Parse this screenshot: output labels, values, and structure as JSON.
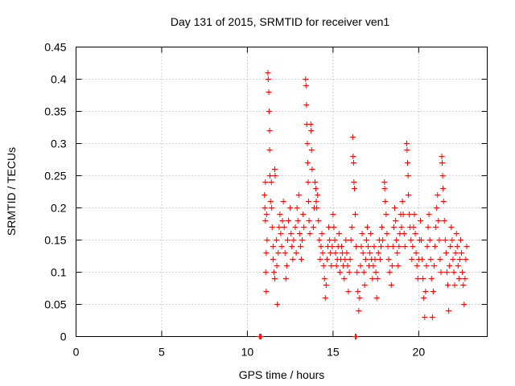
{
  "chart_data": {
    "type": "scatter",
    "title": "Day 131 of 2015, SRMTID for receiver ven1",
    "xlabel": "GPS time / hours",
    "ylabel": "SRMTID / TECUs",
    "xlim": [
      0,
      24
    ],
    "ylim": [
      0,
      0.45
    ],
    "xticks": [
      0,
      5,
      10,
      15,
      20
    ],
    "yticks": [
      0,
      0.05,
      0.1,
      0.15,
      0.2,
      0.25,
      0.3,
      0.35,
      0.4,
      0.45
    ],
    "xtick_labels": [
      "0",
      "5",
      "10",
      "15",
      "20"
    ],
    "ytick_labels": [
      "0",
      "0.05",
      "0.1",
      "0.15",
      "0.2",
      "0.25",
      "0.3",
      "0.35",
      "0.4",
      "0.45"
    ],
    "grid": true,
    "marker": "+",
    "color": "#ff0000",
    "series": [
      {
        "name": "SRMTID",
        "x_range": [
          10.7,
          22.8
        ],
        "y_range": [
          0.0,
          0.41
        ],
        "points": [
          [
            10.7,
            0.0
          ],
          [
            10.75,
            0.0
          ],
          [
            10.8,
            0.0
          ],
          [
            16.3,
            0.0
          ],
          [
            16.35,
            0.0
          ],
          [
            11.0,
            0.22
          ],
          [
            11.02,
            0.2
          ],
          [
            11.05,
            0.18
          ],
          [
            11.05,
            0.24
          ],
          [
            11.07,
            0.1
          ],
          [
            11.1,
            0.13
          ],
          [
            11.1,
            0.07
          ],
          [
            11.12,
            0.19
          ],
          [
            11.15,
            0.15
          ],
          [
            11.2,
            0.41
          ],
          [
            11.22,
            0.4
          ],
          [
            11.25,
            0.38
          ],
          [
            11.27,
            0.35
          ],
          [
            11.3,
            0.32
          ],
          [
            11.3,
            0.29
          ],
          [
            11.32,
            0.25
          ],
          [
            11.35,
            0.21
          ],
          [
            11.4,
            0.24
          ],
          [
            11.42,
            0.2
          ],
          [
            11.45,
            0.17
          ],
          [
            11.5,
            0.14
          ],
          [
            11.5,
            0.12
          ],
          [
            11.55,
            0.1
          ],
          [
            11.6,
            0.09
          ],
          [
            11.6,
            0.26
          ],
          [
            11.62,
            0.25
          ],
          [
            11.7,
            0.15
          ],
          [
            11.72,
            0.11
          ],
          [
            11.75,
            0.05
          ],
          [
            11.8,
            0.13
          ],
          [
            11.85,
            0.17
          ],
          [
            11.9,
            0.19
          ],
          [
            11.95,
            0.16
          ],
          [
            12.0,
            0.14
          ],
          [
            12.05,
            0.18
          ],
          [
            12.1,
            0.21
          ],
          [
            12.15,
            0.17
          ],
          [
            12.2,
            0.13
          ],
          [
            12.25,
            0.09
          ],
          [
            12.3,
            0.11
          ],
          [
            12.35,
            0.15
          ],
          [
            12.4,
            0.18
          ],
          [
            12.5,
            0.2
          ],
          [
            12.55,
            0.16
          ],
          [
            12.6,
            0.14
          ],
          [
            12.65,
            0.12
          ],
          [
            12.7,
            0.15
          ],
          [
            12.8,
            0.17
          ],
          [
            12.85,
            0.13
          ],
          [
            12.9,
            0.2
          ],
          [
            12.95,
            0.18
          ],
          [
            13.0,
            0.22
          ],
          [
            13.05,
            0.16
          ],
          [
            13.1,
            0.14
          ],
          [
            13.15,
            0.12
          ],
          [
            13.2,
            0.15
          ],
          [
            13.25,
            0.19
          ],
          [
            13.3,
            0.17
          ],
          [
            13.4,
            0.4
          ],
          [
            13.42,
            0.39
          ],
          [
            13.45,
            0.36
          ],
          [
            13.47,
            0.33
          ],
          [
            13.5,
            0.3
          ],
          [
            13.52,
            0.27
          ],
          [
            13.55,
            0.24
          ],
          [
            13.57,
            0.21
          ],
          [
            13.6,
            0.18
          ],
          [
            13.65,
            0.16
          ],
          [
            13.7,
            0.33
          ],
          [
            13.72,
            0.32
          ],
          [
            13.75,
            0.29
          ],
          [
            13.78,
            0.26
          ],
          [
            13.85,
            0.17
          ],
          [
            13.9,
            0.2
          ],
          [
            13.95,
            0.24
          ],
          [
            14.0,
            0.23
          ],
          [
            14.02,
            0.21
          ],
          [
            14.05,
            0.2
          ],
          [
            14.1,
            0.22
          ],
          [
            14.15,
            0.18
          ],
          [
            14.2,
            0.15
          ],
          [
            14.25,
            0.12
          ],
          [
            14.3,
            0.14
          ],
          [
            14.35,
            0.16
          ],
          [
            14.4,
            0.13
          ],
          [
            14.45,
            0.11
          ],
          [
            14.5,
            0.09
          ],
          [
            14.55,
            0.06
          ],
          [
            14.6,
            0.08
          ],
          [
            14.65,
            0.12
          ],
          [
            14.7,
            0.14
          ],
          [
            14.75,
            0.17
          ],
          [
            14.8,
            0.15
          ],
          [
            14.85,
            0.13
          ],
          [
            14.9,
            0.11
          ],
          [
            14.95,
            0.14
          ],
          [
            15.0,
            0.19
          ],
          [
            15.05,
            0.17
          ],
          [
            15.1,
            0.15
          ],
          [
            15.15,
            0.13
          ],
          [
            15.2,
            0.11
          ],
          [
            15.25,
            0.12
          ],
          [
            15.3,
            0.14
          ],
          [
            15.35,
            0.16
          ],
          [
            15.4,
            0.1
          ],
          [
            15.45,
            0.12
          ],
          [
            15.5,
            0.14
          ],
          [
            15.55,
            0.13
          ],
          [
            15.6,
            0.11
          ],
          [
            15.65,
            0.09
          ],
          [
            15.7,
            0.12
          ],
          [
            15.75,
            0.15
          ],
          [
            15.8,
            0.13
          ],
          [
            15.85,
            0.11
          ],
          [
            15.9,
            0.07
          ],
          [
            15.95,
            0.1
          ],
          [
            16.0,
            0.12
          ],
          [
            16.05,
            0.15
          ],
          [
            16.1,
            0.17
          ],
          [
            16.15,
            0.31
          ],
          [
            16.17,
            0.28
          ],
          [
            16.2,
            0.27
          ],
          [
            16.22,
            0.24
          ],
          [
            16.25,
            0.23
          ],
          [
            16.3,
            0.19
          ],
          [
            16.35,
            0.14
          ],
          [
            16.4,
            0.1
          ],
          [
            16.45,
            0.07
          ],
          [
            16.5,
            0.04
          ],
          [
            16.55,
            0.06
          ],
          [
            16.6,
            0.11
          ],
          [
            16.65,
            0.14
          ],
          [
            16.7,
            0.16
          ],
          [
            16.75,
            0.13
          ],
          [
            16.8,
            0.1
          ],
          [
            16.85,
            0.08
          ],
          [
            16.9,
            0.12
          ],
          [
            16.95,
            0.15
          ],
          [
            17.0,
            0.17
          ],
          [
            17.05,
            0.14
          ],
          [
            17.1,
            0.11
          ],
          [
            17.15,
            0.13
          ],
          [
            17.2,
            0.16
          ],
          [
            17.25,
            0.12
          ],
          [
            17.3,
            0.09
          ],
          [
            17.35,
            0.11
          ],
          [
            17.4,
            0.14
          ],
          [
            17.45,
            0.12
          ],
          [
            17.5,
            0.1
          ],
          [
            17.55,
            0.06
          ],
          [
            17.6,
            0.09
          ],
          [
            17.65,
            0.13
          ],
          [
            17.7,
            0.15
          ],
          [
            17.75,
            0.12
          ],
          [
            17.8,
            0.14
          ],
          [
            17.85,
            0.17
          ],
          [
            17.9,
            0.15
          ],
          [
            18.0,
            0.24
          ],
          [
            18.02,
            0.23
          ],
          [
            18.05,
            0.21
          ],
          [
            18.1,
            0.19
          ],
          [
            18.15,
            0.16
          ],
          [
            18.2,
            0.14
          ],
          [
            18.25,
            0.12
          ],
          [
            18.3,
            0.1
          ],
          [
            18.4,
            0.08
          ],
          [
            18.45,
            0.11
          ],
          [
            18.5,
            0.14
          ],
          [
            18.55,
            0.17
          ],
          [
            18.6,
            0.2
          ],
          [
            18.65,
            0.18
          ],
          [
            18.7,
            0.15
          ],
          [
            18.75,
            0.13
          ],
          [
            18.8,
            0.11
          ],
          [
            18.85,
            0.14
          ],
          [
            18.9,
            0.16
          ],
          [
            18.95,
            0.19
          ],
          [
            19.0,
            0.17
          ],
          [
            19.05,
            0.21
          ],
          [
            19.1,
            0.19
          ],
          [
            19.15,
            0.16
          ],
          [
            19.2,
            0.14
          ],
          [
            19.3,
            0.3
          ],
          [
            19.32,
            0.29
          ],
          [
            19.35,
            0.27
          ],
          [
            19.38,
            0.25
          ],
          [
            19.4,
            0.22
          ],
          [
            19.45,
            0.19
          ],
          [
            19.5,
            0.17
          ],
          [
            19.55,
            0.15
          ],
          [
            19.6,
            0.12
          ],
          [
            19.65,
            0.14
          ],
          [
            19.7,
            0.17
          ],
          [
            19.75,
            0.19
          ],
          [
            19.8,
            0.16
          ],
          [
            19.85,
            0.13
          ],
          [
            19.9,
            0.11
          ],
          [
            19.95,
            0.09
          ],
          [
            20.0,
            0.12
          ],
          [
            20.05,
            0.15
          ],
          [
            20.1,
            0.18
          ],
          [
            20.15,
            0.15
          ],
          [
            20.2,
            0.12
          ],
          [
            20.25,
            0.09
          ],
          [
            20.3,
            0.06
          ],
          [
            20.35,
            0.03
          ],
          [
            20.4,
            0.07
          ],
          [
            20.45,
            0.11
          ],
          [
            20.5,
            0.14
          ],
          [
            20.55,
            0.17
          ],
          [
            20.6,
            0.19
          ],
          [
            20.65,
            0.15
          ],
          [
            20.7,
            0.12
          ],
          [
            20.75,
            0.09
          ],
          [
            20.8,
            0.03
          ],
          [
            20.85,
            0.07
          ],
          [
            20.9,
            0.11
          ],
          [
            20.95,
            0.14
          ],
          [
            21.0,
            0.17
          ],
          [
            21.05,
            0.2
          ],
          [
            21.1,
            0.22
          ],
          [
            21.15,
            0.18
          ],
          [
            21.2,
            0.15
          ],
          [
            21.25,
            0.12
          ],
          [
            21.3,
            0.1
          ],
          [
            21.35,
            0.28
          ],
          [
            21.37,
            0.27
          ],
          [
            21.4,
            0.25
          ],
          [
            21.42,
            0.23
          ],
          [
            21.45,
            0.21
          ],
          [
            21.5,
            0.18
          ],
          [
            21.55,
            0.15
          ],
          [
            21.6,
            0.13
          ],
          [
            21.65,
            0.1
          ],
          [
            21.7,
            0.08
          ],
          [
            21.75,
            0.04
          ],
          [
            21.8,
            0.11
          ],
          [
            21.85,
            0.14
          ],
          [
            21.9,
            0.17
          ],
          [
            21.95,
            0.15
          ],
          [
            22.0,
            0.12
          ],
          [
            22.05,
            0.1
          ],
          [
            22.1,
            0.08
          ],
          [
            22.15,
            0.13
          ],
          [
            22.2,
            0.16
          ],
          [
            22.25,
            0.14
          ],
          [
            22.3,
            0.11
          ],
          [
            22.35,
            0.09
          ],
          [
            22.4,
            0.12
          ],
          [
            22.45,
            0.15
          ],
          [
            22.5,
            0.13
          ],
          [
            22.55,
            0.1
          ],
          [
            22.6,
            0.08
          ],
          [
            22.65,
            0.05
          ],
          [
            22.7,
            0.09
          ],
          [
            22.75,
            0.12
          ],
          [
            22.8,
            0.14
          ]
        ]
      }
    ]
  }
}
